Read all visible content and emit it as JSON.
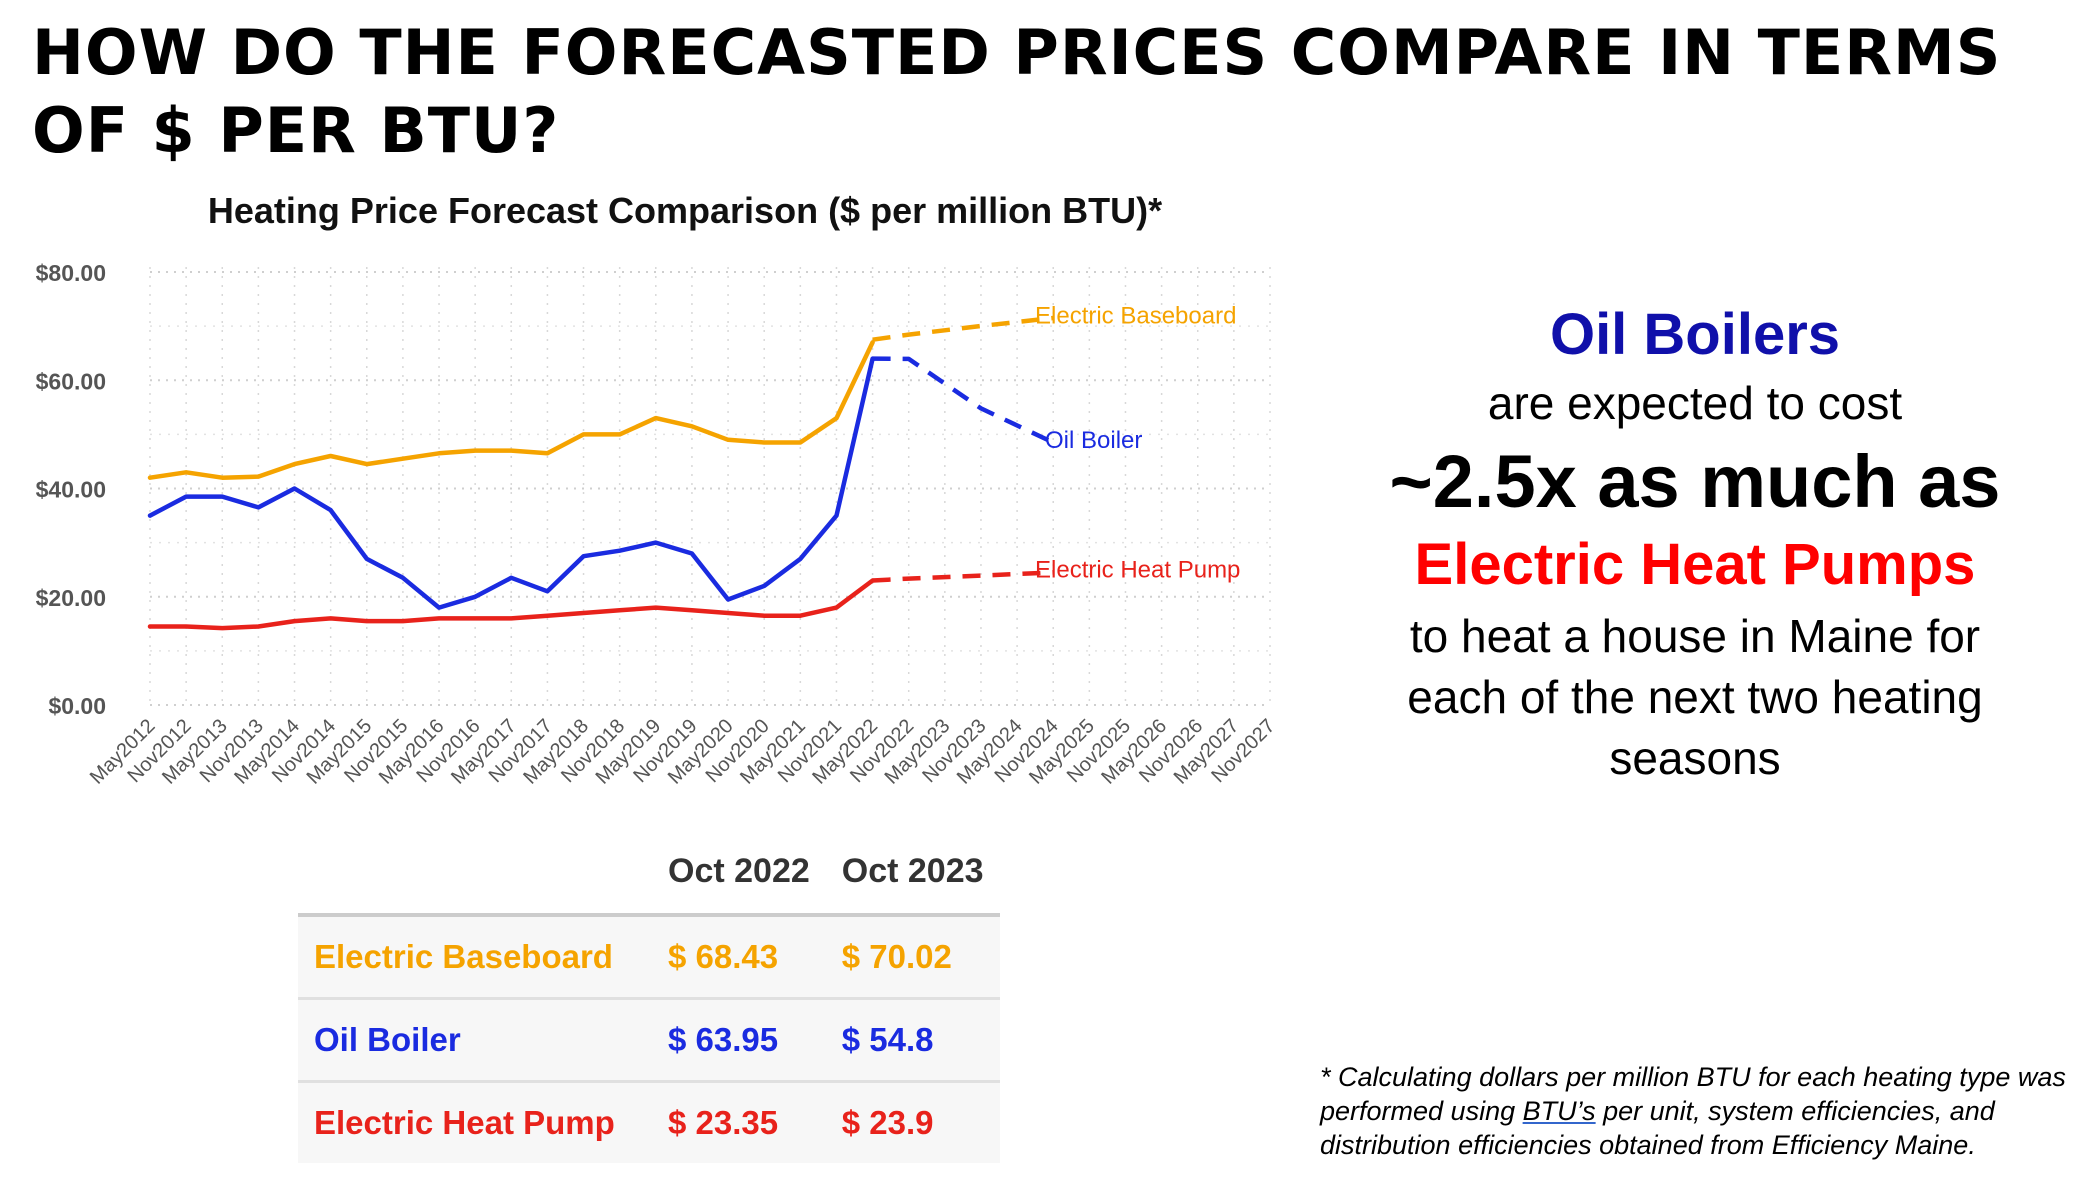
{
  "page": {
    "title": "HOW DO THE FORECASTED PRICES COMPARE IN TERMS OF $ PER BTU?"
  },
  "colors": {
    "electric_baseboard": "#f5a300",
    "oil_boiler": "#1a2be0",
    "electric_heat_pump": "#e8221b",
    "oil_boilers_heading": "#1010aa",
    "heat_pumps_heading": "#ff0000"
  },
  "chart_data": {
    "type": "line",
    "title": "Heating Price Forecast Comparison ($ per million BTU)*",
    "xlabel": "",
    "ylabel": "",
    "ylim": [
      0,
      80
    ],
    "y_ticks": [
      "$0.00",
      "$20.00",
      "$40.00",
      "$60.00",
      "$80.00"
    ],
    "x_tick_labels": [
      "May2012",
      "Nov2012",
      "May2013",
      "Nov2013",
      "May2014",
      "Nov2014",
      "May2015",
      "Nov2015",
      "May2016",
      "Nov2016",
      "May2017",
      "Nov2017",
      "May2018",
      "Nov2018",
      "May2019",
      "Nov2019",
      "May2020",
      "Nov2020",
      "May2021",
      "Nov2021",
      "May2022",
      "Nov2022",
      "May2023",
      "Nov2023",
      "May2024",
      "Nov2024",
      "May2025",
      "Nov2025",
      "May2026",
      "Nov2026",
      "May2027",
      "Nov2027"
    ],
    "grid": true,
    "legend": "inline labels at series ends",
    "series": [
      {
        "name": "Electric Baseboard",
        "color": "#f5a300",
        "historical": [
          [
            "May2012",
            42.0
          ],
          [
            "Nov2012",
            43.0
          ],
          [
            "May2013",
            42.0
          ],
          [
            "Nov2013",
            42.2
          ],
          [
            "May2014",
            44.5
          ],
          [
            "Nov2014",
            46.0
          ],
          [
            "May2015",
            44.5
          ],
          [
            "Nov2015",
            45.5
          ],
          [
            "May2016",
            46.5
          ],
          [
            "Nov2016",
            47.0
          ],
          [
            "May2017",
            47.0
          ],
          [
            "Nov2017",
            46.5
          ],
          [
            "May2018",
            50.0
          ],
          [
            "Nov2018",
            50.0
          ],
          [
            "May2019",
            53.0
          ],
          [
            "Nov2019",
            51.5
          ],
          [
            "May2020",
            49.0
          ],
          [
            "Nov2020",
            48.5
          ],
          [
            "May2021",
            48.5
          ],
          [
            "Nov2021",
            53.0
          ],
          [
            "May2022",
            67.0
          ]
        ],
        "forecast": [
          [
            "May2022",
            67.5
          ],
          [
            "Nov2022",
            68.43
          ],
          [
            "Nov2023",
            70.02
          ],
          [
            "Nov2024",
            71.5
          ]
        ]
      },
      {
        "name": "Oil Boiler",
        "color": "#1a2be0",
        "historical": [
          [
            "May2012",
            35.0
          ],
          [
            "Nov2012",
            38.5
          ],
          [
            "May2013",
            38.5
          ],
          [
            "Nov2013",
            36.5
          ],
          [
            "May2014",
            40.0
          ],
          [
            "Nov2014",
            36.0
          ],
          [
            "May2015",
            27.0
          ],
          [
            "Nov2015",
            23.5
          ],
          [
            "May2016",
            18.0
          ],
          [
            "Nov2016",
            20.0
          ],
          [
            "May2017",
            23.5
          ],
          [
            "Nov2017",
            21.0
          ],
          [
            "May2018",
            27.5
          ],
          [
            "Nov2018",
            28.5
          ],
          [
            "May2019",
            30.0
          ],
          [
            "Nov2019",
            28.0
          ],
          [
            "May2020",
            19.5
          ],
          [
            "Nov2020",
            22.0
          ],
          [
            "May2021",
            27.0
          ],
          [
            "Nov2021",
            35.0
          ],
          [
            "May2022",
            64.0
          ]
        ],
        "forecast": [
          [
            "May2022",
            64.0
          ],
          [
            "Nov2022",
            63.95
          ],
          [
            "Nov2023",
            54.8
          ],
          [
            "Nov2024",
            48.5
          ]
        ]
      },
      {
        "name": "Electric Heat Pump",
        "color": "#e8221b",
        "historical": [
          [
            "May2012",
            14.5
          ],
          [
            "Nov2012",
            14.5
          ],
          [
            "May2013",
            14.2
          ],
          [
            "Nov2013",
            14.5
          ],
          [
            "May2014",
            15.5
          ],
          [
            "Nov2014",
            16.0
          ],
          [
            "May2015",
            15.5
          ],
          [
            "Nov2015",
            15.5
          ],
          [
            "May2016",
            16.0
          ],
          [
            "Nov2016",
            16.0
          ],
          [
            "May2017",
            16.0
          ],
          [
            "Nov2017",
            16.5
          ],
          [
            "May2018",
            17.0
          ],
          [
            "Nov2018",
            17.5
          ],
          [
            "May2019",
            18.0
          ],
          [
            "Nov2019",
            17.5
          ],
          [
            "May2020",
            17.0
          ],
          [
            "Nov2020",
            16.5
          ],
          [
            "May2021",
            16.5
          ],
          [
            "Nov2021",
            18.0
          ],
          [
            "May2022",
            23.0
          ]
        ],
        "forecast": [
          [
            "May2022",
            23.0
          ],
          [
            "Nov2022",
            23.35
          ],
          [
            "Nov2023",
            23.9
          ],
          [
            "Nov2024",
            24.5
          ]
        ]
      }
    ]
  },
  "callout": {
    "line1": "Oil Boilers",
    "line2": "are expected to cost",
    "line3": "~2.5x as much as",
    "line4": "Electric Heat Pumps",
    "line5a": "to heat a house in Maine for",
    "line5b": "each of the next two heating",
    "line5c": "seasons"
  },
  "table": {
    "columns": [
      "Oct 2022",
      "Oct 2023"
    ],
    "rows": [
      {
        "label": "Electric Baseboard",
        "v1": "$ 68.43",
        "v2": "$ 70.02",
        "color": "#f5a300"
      },
      {
        "label": "Oil Boiler",
        "v1": "$ 63.95",
        "v2": "$ 54.8",
        "color": "#1a2be0"
      },
      {
        "label": "Electric Heat Pump",
        "v1": "$ 23.35",
        "v2": "$ 23.9",
        "color": "#e8221b"
      }
    ]
  },
  "footnote": {
    "part1": "* Calculating dollars per million BTU for each heating type was performed using ",
    "underlined": "BTU’s",
    "part2": " per unit, system efficiencies, and distribution efficiencies obtained from Efficiency Maine."
  }
}
